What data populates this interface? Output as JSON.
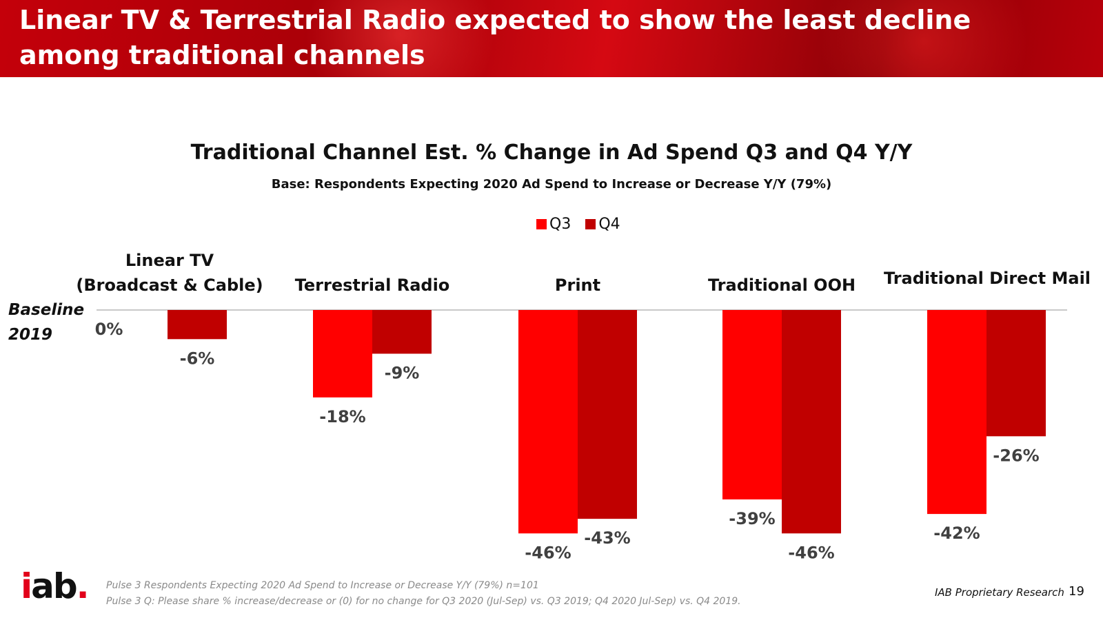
{
  "header": {
    "title": "Linear TV & Terrestrial Radio expected to show the least decline among traditional channels"
  },
  "baseline": {
    "line1": "Baseline",
    "line2": "2019"
  },
  "chart_data": {
    "type": "bar",
    "title": "Traditional Channel Est. % Change in Ad Spend Q3 and Q4 Y/Y",
    "subtitle": "Base:  Respondents Expecting 2020 Ad Spend to Increase or Decrease Y/Y (79%)",
    "categories": [
      [
        "Linear TV",
        "(Broadcast & Cable)"
      ],
      [
        "Terrestrial Radio"
      ],
      [
        "Print"
      ],
      [
        "Traditional OOH"
      ],
      [
        "Traditional Direct Mail"
      ]
    ],
    "series": [
      {
        "name": "Q3",
        "color": "#ff0000",
        "values": [
          0,
          -18,
          -46,
          -39,
          -42
        ],
        "labels": [
          "0%",
          "-18%",
          "-46%",
          "-39%",
          "-42%"
        ]
      },
      {
        "name": "Q4",
        "color": "#c00000",
        "values": [
          -6,
          -9,
          -43,
          -46,
          -26
        ],
        "labels": [
          "-6%",
          "-9%",
          "-43%",
          "-46%",
          "-26%"
        ]
      }
    ],
    "ylim": [
      -50,
      0
    ],
    "legend": "top-center",
    "grid": false
  },
  "footnotes": [
    "Pulse 3 Respondents Expecting 2020 Ad Spend to Increase or Decrease Y/Y (79%) n=101",
    "Pulse 3 Q: Please share % increase/decrease or (0) for no change for Q3 2020 (Jul-Sep) vs. Q3 2019; Q4 2020 Jul-Sep) vs. Q4 2019."
  ],
  "logo": {
    "i": "i",
    "ab": "ab",
    "dot": "."
  },
  "footer": {
    "proprietary": "IAB Proprietary Research",
    "page": "19"
  }
}
